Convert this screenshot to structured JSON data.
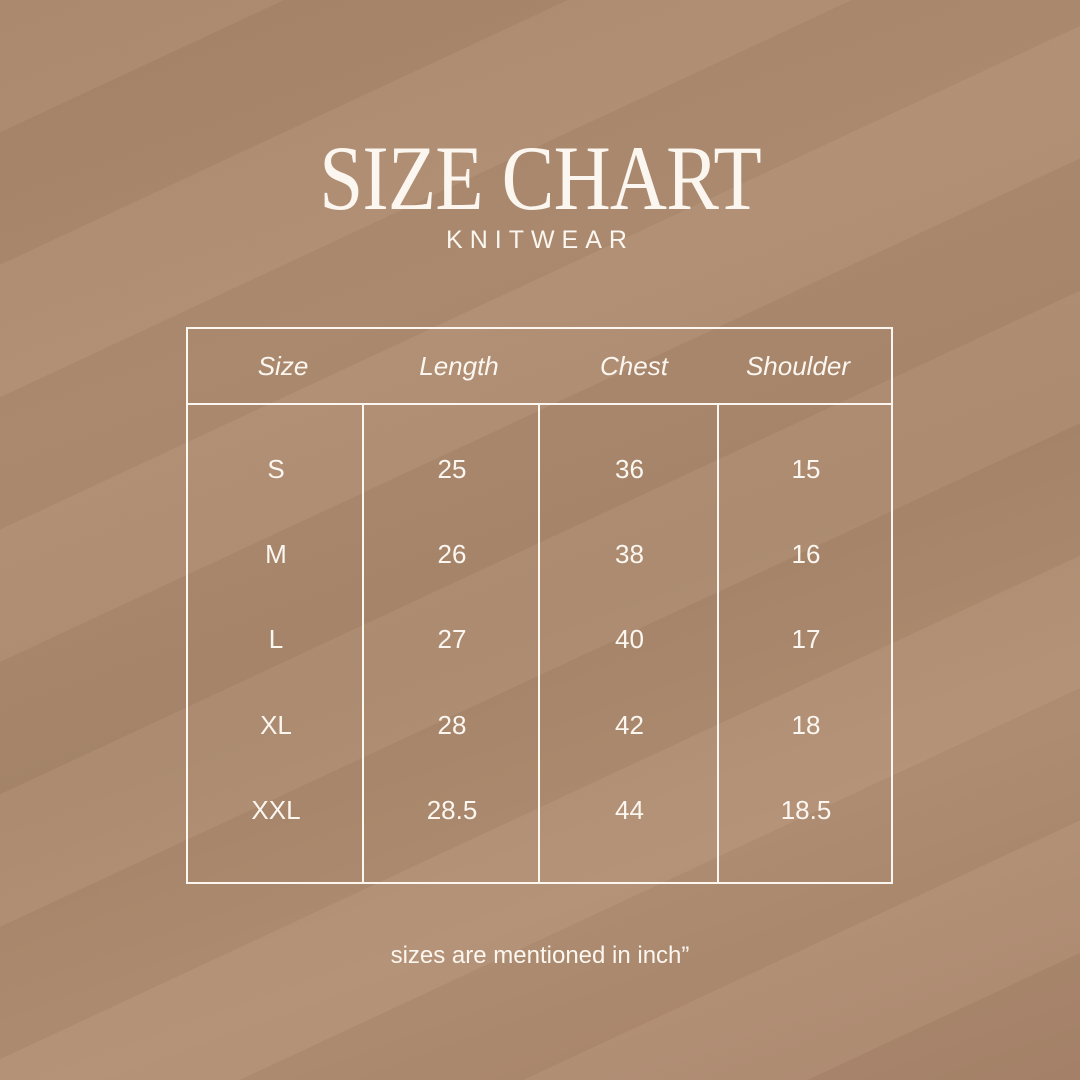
{
  "title": "SIZE CHART",
  "subtitle": "KNITWEAR",
  "table": {
    "headers": [
      "Size",
      "Length",
      "Chest",
      "Shoulder"
    ],
    "rows": [
      [
        "S",
        "25",
        "36",
        "15"
      ],
      [
        "M",
        "26",
        "38",
        "16"
      ],
      [
        "L",
        "27",
        "40",
        "17"
      ],
      [
        "XL",
        "28",
        "42",
        "18"
      ],
      [
        "XXL",
        "28.5",
        "44",
        "18.5"
      ]
    ]
  },
  "note": "sizes are mentioned in inch”",
  "colors": {
    "background": "#a8856a",
    "text": "#fbf6ef"
  }
}
